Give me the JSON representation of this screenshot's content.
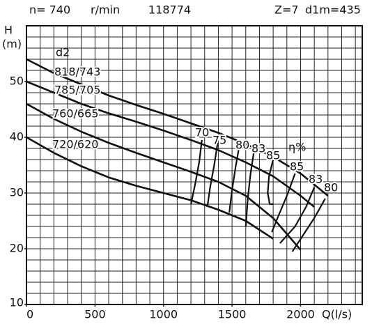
{
  "chart_data": {
    "type": "line",
    "header": [
      "n= 740",
      "r/min",
      "118774",
      "Z=7",
      "d1m=435"
    ],
    "y_label": "H",
    "y_unit": "(m)",
    "x_label": "Q(l/s)",
    "curve_group_label": "d2",
    "efficiency_label": "η%",
    "xlim": [
      0,
      2450
    ],
    "ylim": [
      10,
      60
    ],
    "xticks": [
      0,
      500,
      1000,
      1500,
      2000
    ],
    "yticks": [
      10,
      20,
      30,
      40,
      50
    ],
    "xgrid": [
      0,
      100,
      200,
      300,
      400,
      500,
      600,
      700,
      800,
      900,
      1000,
      1100,
      1200,
      1300,
      1400,
      1500,
      1600,
      1700,
      1800,
      1900,
      2000,
      2100,
      2200,
      2300,
      2400
    ],
    "ygrid": [
      10,
      12,
      14,
      16,
      18,
      20,
      22,
      24,
      26,
      28,
      30,
      32,
      34,
      36,
      38,
      40,
      42,
      44,
      46,
      48,
      50,
      52,
      54,
      56,
      58,
      60
    ],
    "grid": true,
    "series": [
      {
        "name": "818/743",
        "color": "#111",
        "x": [
          0,
          200,
          400,
          600,
          800,
          1000,
          1200,
          1400,
          1600,
          1800,
          2000,
          2200
        ],
        "values": [
          54,
          51.5,
          49.5,
          47.5,
          45.8,
          44.2,
          42.5,
          40.8,
          38.8,
          36.5,
          33.5,
          29.5
        ]
      },
      {
        "name": "785/705",
        "color": "#111",
        "x": [
          0,
          200,
          400,
          600,
          800,
          1000,
          1200,
          1400,
          1600,
          1800,
          2000,
          2100
        ],
        "values": [
          50,
          48,
          46,
          44.3,
          42.8,
          41.2,
          39.5,
          37.7,
          35.5,
          33,
          29.5,
          27.5
        ]
      },
      {
        "name": "760/665",
        "color": "#111",
        "x": [
          0,
          200,
          400,
          600,
          800,
          1000,
          1200,
          1400,
          1600,
          1800,
          2000
        ],
        "values": [
          46,
          43.3,
          41,
          39,
          37.2,
          35.5,
          33.8,
          32,
          29.5,
          25.5,
          19.8
        ]
      },
      {
        "name": "720/620",
        "color": "#111",
        "x": [
          0,
          200,
          400,
          600,
          800,
          1000,
          1200,
          1400,
          1600,
          1800
        ],
        "values": [
          40,
          37.2,
          34.8,
          32.8,
          31.3,
          30,
          28.7,
          27,
          25,
          21.8
        ]
      },
      {
        "name": "70",
        "color": "#111",
        "x": [
          1200,
          1230,
          1260,
          1280
        ],
        "values": [
          28,
          31.5,
          35.5,
          39.5
        ]
      },
      {
        "name": "75",
        "color": "#111",
        "x": [
          1320,
          1340,
          1370,
          1395
        ],
        "values": [
          27.5,
          31,
          35,
          39
        ]
      },
      {
        "name": "80",
        "color": "#111",
        "x": [
          1480,
          1500,
          1525,
          1550
        ],
        "values": [
          26.5,
          30.5,
          34.5,
          38
        ]
      },
      {
        "name": "83",
        "color": "#111",
        "x": [
          1600,
          1615,
          1635,
          1660
        ],
        "values": [
          24,
          29,
          33.5,
          37.5
        ]
      },
      {
        "name": "85",
        "color": "#111",
        "x": [
          1800,
          1770,
          1760,
          1775,
          1800
        ],
        "values": [
          36,
          33,
          30,
          28,
          28
        ]
      },
      {
        "name": "85",
        "color": "#111",
        "x": [
          1960,
          1900,
          1840,
          1790
        ],
        "values": [
          33.5,
          29.5,
          26,
          23
        ]
      },
      {
        "name": "83",
        "color": "#111",
        "x": [
          2100,
          2040,
          1960,
          1850
        ],
        "values": [
          31,
          27.5,
          24,
          21
        ]
      },
      {
        "name": "80",
        "color": "#111",
        "x": [
          2180,
          2100,
          2020,
          1940
        ],
        "values": [
          29,
          25.5,
          22.5,
          19.5
        ]
      }
    ]
  }
}
